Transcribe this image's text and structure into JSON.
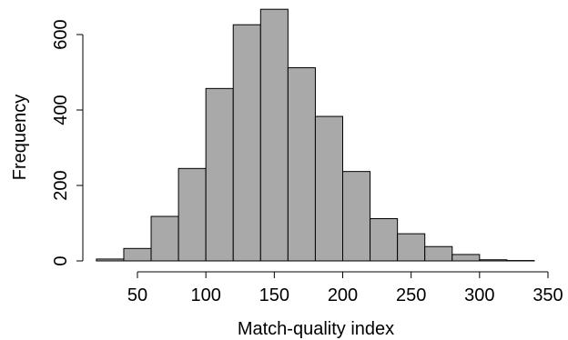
{
  "chart_data": {
    "type": "bar",
    "subtype": "histogram",
    "title": "",
    "xlabel": "Match-quality index",
    "ylabel": "Frequency",
    "bins": [
      {
        "from": 20,
        "to": 40,
        "count": 5
      },
      {
        "from": 40,
        "to": 60,
        "count": 33
      },
      {
        "from": 60,
        "to": 80,
        "count": 118
      },
      {
        "from": 80,
        "to": 100,
        "count": 245
      },
      {
        "from": 100,
        "to": 120,
        "count": 457
      },
      {
        "from": 120,
        "to": 140,
        "count": 626
      },
      {
        "from": 140,
        "to": 160,
        "count": 667
      },
      {
        "from": 160,
        "to": 180,
        "count": 512
      },
      {
        "from": 180,
        "to": 200,
        "count": 383
      },
      {
        "from": 200,
        "to": 220,
        "count": 237
      },
      {
        "from": 220,
        "to": 240,
        "count": 112
      },
      {
        "from": 240,
        "to": 260,
        "count": 72
      },
      {
        "from": 260,
        "to": 280,
        "count": 38
      },
      {
        "from": 280,
        "to": 300,
        "count": 17
      },
      {
        "from": 300,
        "to": 320,
        "count": 3
      },
      {
        "from": 320,
        "to": 340,
        "count": 1
      }
    ],
    "xlim": [
      20,
      350
    ],
    "ylim": [
      0,
      670
    ],
    "x_ticks": [
      50,
      100,
      150,
      200,
      250,
      300,
      350
    ],
    "y_ticks": [
      0,
      200,
      400,
      600
    ],
    "bar_color": "#a9a9a9",
    "grid": false,
    "legend": "none"
  }
}
